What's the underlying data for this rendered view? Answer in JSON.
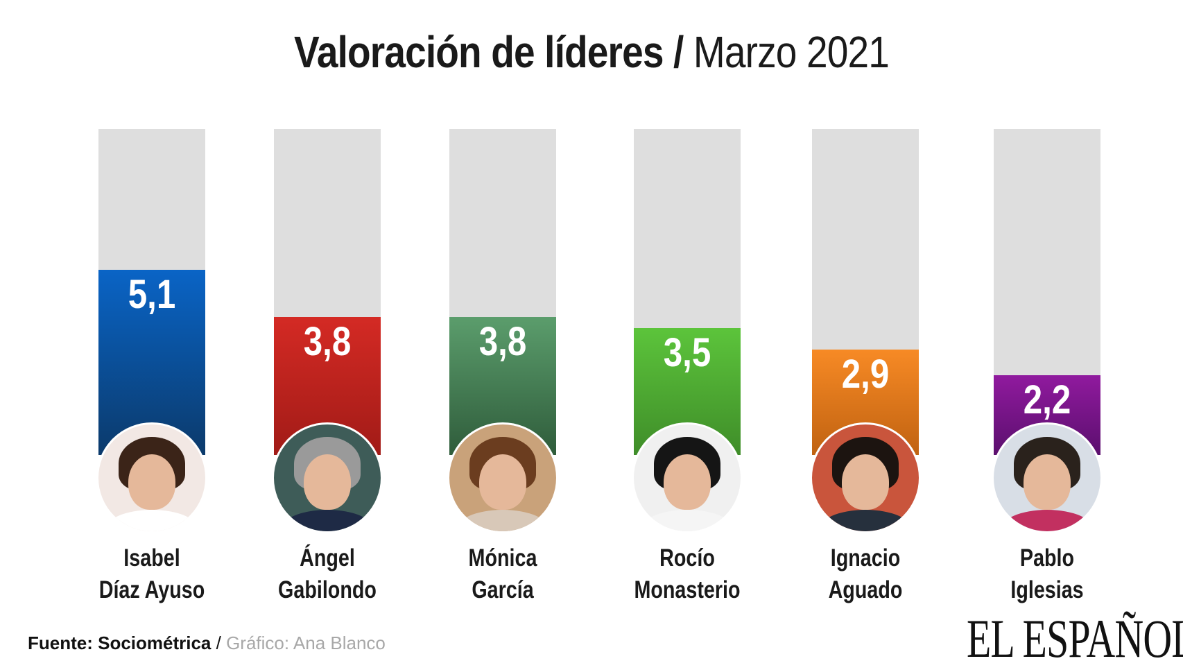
{
  "title_bold": "Valoración de líderes",
  "title_sep": " / ",
  "title_light": "Marzo 2021",
  "chart_data": {
    "type": "bar",
    "title": "Valoración de líderes / Marzo 2021",
    "categories": [
      "Isabel Díaz Ayuso",
      "Ángel Gabilondo",
      "Mónica García",
      "Rocío Monasterio",
      "Ignacio Aguado",
      "Pablo Iglesias"
    ],
    "values": [
      5.1,
      3.8,
      3.8,
      3.5,
      2.9,
      2.2
    ],
    "ylim": [
      0,
      9
    ],
    "grid": false,
    "xlabel": "",
    "ylabel": ""
  },
  "bars": [
    {
      "label": "5,1",
      "name1": "Isabel",
      "name2": "Díaz Ayuso",
      "value": 5.1,
      "c1": "#0a64c6",
      "c2": "#0b3a6b",
      "photo": "#f2e8e4",
      "hair": "#3b2418",
      "body": "#ffffff"
    },
    {
      "label": "3,8",
      "name1": "Ángel",
      "name2": "Gabilondo",
      "value": 3.8,
      "c1": "#d42a24",
      "c2": "#a11b17",
      "photo": "#3e5c58",
      "hair": "#9a9a9a",
      "body": "#1e2a45"
    },
    {
      "label": "3,8",
      "name1": "Mónica",
      "name2": "García",
      "value": 3.8,
      "c1": "#5b9d6c",
      "c2": "#2f5c3b",
      "photo": "#c9a27a",
      "hair": "#6b3d1f",
      "body": "#d8c8b8"
    },
    {
      "label": "3,5",
      "name1": "Rocío",
      "name2": "Monasterio",
      "value": 3.5,
      "c1": "#5cc43b",
      "c2": "#3f8d29",
      "photo": "#f0f0f0",
      "hair": "#151515",
      "body": "#f5f5f5"
    },
    {
      "label": "2,9",
      "name1": "Ignacio",
      "name2": "Aguado",
      "value": 2.9,
      "c1": "#f78a25",
      "c2": "#c06211",
      "photo": "#c9553c",
      "hair": "#1c1410",
      "body": "#26303d"
    },
    {
      "label": "2,2",
      "name1": "Pablo",
      "name2": "Iglesias",
      "value": 2.2,
      "c1": "#901a9e",
      "c2": "#5b0f6e",
      "photo": "#d8dee6",
      "hair": "#2a221c",
      "body": "#c23060"
    }
  ],
  "footer": {
    "source": "Fuente: Sociométrica",
    "sep": " / ",
    "credit": "Gráfico: Ana Blanco"
  },
  "logo": "EL ESPAÑOL"
}
